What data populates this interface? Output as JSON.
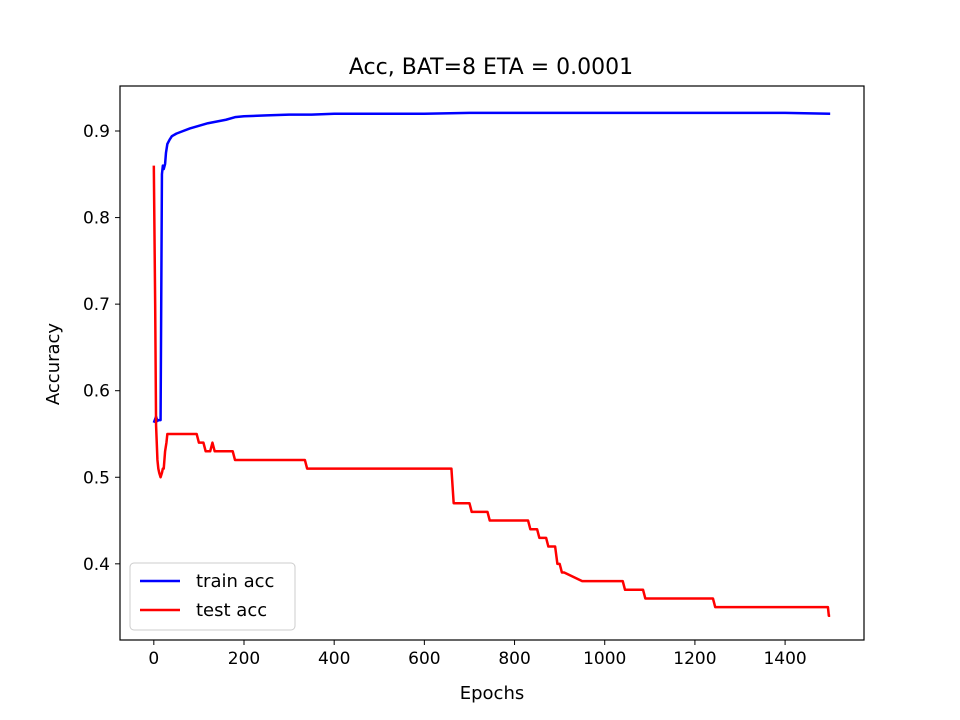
{
  "chart_data": {
    "type": "line",
    "title": "Acc, BAT=8 ETA = 0.0001",
    "xlabel": "Epochs",
    "ylabel": "Accuracy",
    "xlim": [
      -75,
      1575
    ],
    "ylim": [
      0.312,
      0.952
    ],
    "xticks": [
      0,
      200,
      400,
      600,
      800,
      1000,
      1200,
      1400
    ],
    "yticks": [
      0.4,
      0.5,
      0.6,
      0.7,
      0.8,
      0.9
    ],
    "ytick_labels": [
      "0.4",
      "0.5",
      "0.6",
      "0.7",
      "0.8",
      "0.9"
    ],
    "grid": false,
    "legend_position": "lower-left",
    "series": [
      {
        "name": "train acc",
        "color": "#0000ff",
        "x": [
          0,
          5,
          8,
          10,
          15,
          18,
          20,
          22,
          25,
          27,
          30,
          35,
          40,
          50,
          60,
          80,
          100,
          120,
          140,
          160,
          180,
          200,
          250,
          300,
          350,
          400,
          500,
          600,
          700,
          800,
          900,
          1000,
          1100,
          1200,
          1300,
          1400,
          1500
        ],
        "y": [
          0.563,
          0.57,
          0.565,
          0.566,
          0.566,
          0.85,
          0.86,
          0.856,
          0.862,
          0.875,
          0.885,
          0.89,
          0.894,
          0.897,
          0.899,
          0.903,
          0.906,
          0.909,
          0.911,
          0.913,
          0.916,
          0.917,
          0.918,
          0.919,
          0.919,
          0.92,
          0.92,
          0.92,
          0.921,
          0.921,
          0.921,
          0.921,
          0.921,
          0.921,
          0.921,
          0.921,
          0.92
        ]
      },
      {
        "name": "test acc",
        "color": "#ff0000",
        "x": [
          0,
          3,
          5,
          8,
          10,
          12,
          15,
          18,
          20,
          22,
          25,
          28,
          30,
          35,
          40,
          60,
          80,
          95,
          100,
          110,
          115,
          125,
          130,
          135,
          160,
          175,
          180,
          200,
          250,
          300,
          335,
          340,
          400,
          500,
          600,
          660,
          665,
          700,
          705,
          740,
          745,
          800,
          830,
          835,
          850,
          855,
          870,
          875,
          890,
          895,
          900,
          905,
          910,
          950,
          1000,
          1040,
          1045,
          1085,
          1090,
          1100,
          1200,
          1240,
          1245,
          1400,
          1495,
          1497,
          1500
        ],
        "y": [
          0.86,
          0.7,
          0.56,
          0.52,
          0.51,
          0.505,
          0.5,
          0.505,
          0.51,
          0.51,
          0.53,
          0.54,
          0.55,
          0.55,
          0.55,
          0.55,
          0.55,
          0.55,
          0.54,
          0.54,
          0.53,
          0.53,
          0.54,
          0.53,
          0.53,
          0.53,
          0.52,
          0.52,
          0.52,
          0.52,
          0.52,
          0.51,
          0.51,
          0.51,
          0.51,
          0.51,
          0.47,
          0.47,
          0.46,
          0.46,
          0.45,
          0.45,
          0.45,
          0.44,
          0.44,
          0.43,
          0.43,
          0.42,
          0.42,
          0.4,
          0.4,
          0.39,
          0.39,
          0.38,
          0.38,
          0.38,
          0.37,
          0.37,
          0.36,
          0.36,
          0.36,
          0.36,
          0.35,
          0.35,
          0.35,
          0.34,
          0.34
        ]
      }
    ]
  }
}
